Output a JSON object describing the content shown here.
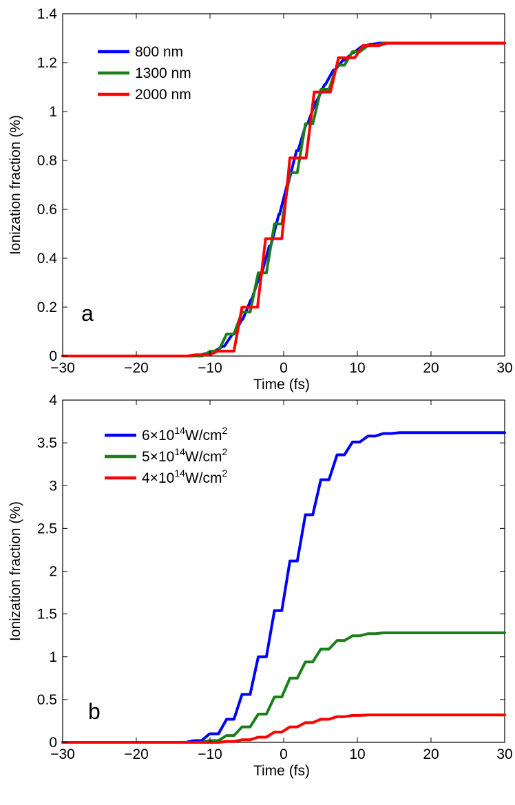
{
  "colors": {
    "blue": "#0000ff",
    "green": "#1a7f1a",
    "red": "#ff0000"
  },
  "chart_data": [
    {
      "type": "line",
      "panel_label": "a",
      "title": "",
      "xlabel": "Time (fs)",
      "ylabel": "Ionization fraction (%)",
      "xlim": [
        -30,
        30
      ],
      "ylim": [
        0,
        1.4
      ],
      "xticks": [
        "−30",
        "−20",
        "−10",
        "0",
        "10",
        "20",
        "30"
      ],
      "yticks": [
        "0",
        "0.2",
        "0.4",
        "0.6",
        "0.8",
        "1",
        "1.2",
        "1.4"
      ],
      "grid": false,
      "legend_position": "top-left",
      "series": [
        {
          "name": "800 nm",
          "color": "#0000ff",
          "final": 1.28,
          "steps": [
            [
              -11.2,
              0.01
            ],
            [
              -10,
              0.02
            ],
            [
              -8.8,
              0.04
            ],
            [
              -7.5,
              0.09
            ],
            [
              -6.2,
              0.15
            ],
            [
              -5,
              0.23
            ],
            [
              -3.8,
              0.33
            ],
            [
              -2.5,
              0.45
            ],
            [
              -1.2,
              0.58
            ],
            [
              0,
              0.71
            ],
            [
              1.2,
              0.84
            ],
            [
              2.5,
              0.95
            ],
            [
              3.8,
              1.04
            ],
            [
              5,
              1.11
            ],
            [
              6.2,
              1.17
            ],
            [
              7.5,
              1.21
            ],
            [
              8.8,
              1.24
            ],
            [
              10,
              1.265
            ],
            [
              11.2,
              1.275
            ],
            [
              12.5,
              1.28
            ]
          ]
        },
        {
          "name": "1300 nm",
          "color": "#1a7f1a",
          "final": 1.28,
          "steps": [
            [
              -10.5,
              0.02
            ],
            [
              -8.3,
              0.09
            ],
            [
              -6.2,
              0.18
            ],
            [
              -4,
              0.34
            ],
            [
              -1.8,
              0.54
            ],
            [
              0.3,
              0.75
            ],
            [
              2.4,
              0.95
            ],
            [
              4.5,
              1.09
            ],
            [
              6.7,
              1.19
            ],
            [
              8.8,
              1.245
            ],
            [
              10.9,
              1.27
            ],
            [
              13,
              1.28
            ]
          ]
        },
        {
          "name": "2000 nm",
          "color": "#ff0000",
          "final": 1.28,
          "steps": [
            [
              -12.5,
              0.005
            ],
            [
              -9.5,
              0.02
            ],
            [
              -6.2,
              0.2
            ],
            [
              -3,
              0.48
            ],
            [
              0.3,
              0.81
            ],
            [
              3.6,
              1.08
            ],
            [
              6.9,
              1.22
            ],
            [
              10.2,
              1.27
            ],
            [
              13.5,
              1.28
            ]
          ]
        }
      ]
    },
    {
      "type": "line",
      "panel_label": "b",
      "title": "",
      "xlabel": "Time (fs)",
      "ylabel": "Ionization fraction (%)",
      "xlim": [
        -30,
        30
      ],
      "ylim": [
        0,
        4
      ],
      "xticks": [
        "−30",
        "−20",
        "−10",
        "0",
        "10",
        "20",
        "30"
      ],
      "yticks": [
        "0",
        "0.5",
        "1",
        "1.5",
        "2",
        "2.5",
        "3",
        "3.5",
        "4"
      ],
      "grid": false,
      "legend_position": "top-left",
      "series": [
        {
          "name_base": "6×10",
          "name_exp": "14",
          "name_unit": "W/cm",
          "name_unit_exp": "2",
          "color": "#0000ff",
          "steps": [
            [
              -12.7,
              0.02
            ],
            [
              -10.6,
              0.1
            ],
            [
              -8.3,
              0.27
            ],
            [
              -6.2,
              0.56
            ],
            [
              -4,
              1.0
            ],
            [
              -1.8,
              1.54
            ],
            [
              0.3,
              2.12
            ],
            [
              2.4,
              2.66
            ],
            [
              4.5,
              3.07
            ],
            [
              6.7,
              3.36
            ],
            [
              8.8,
              3.51
            ],
            [
              10.9,
              3.58
            ],
            [
              13,
              3.61
            ],
            [
              15.2,
              3.62
            ]
          ]
        },
        {
          "name_base": "5×10",
          "name_exp": "14",
          "name_unit": "W/cm",
          "name_unit_exp": "2",
          "color": "#1a7f1a",
          "steps": [
            [
              -10.6,
              0.02
            ],
            [
              -8.3,
              0.08
            ],
            [
              -6.2,
              0.18
            ],
            [
              -4,
              0.33
            ],
            [
              -1.8,
              0.53
            ],
            [
              0.3,
              0.75
            ],
            [
              2.4,
              0.94
            ],
            [
              4.5,
              1.09
            ],
            [
              6.7,
              1.19
            ],
            [
              8.8,
              1.245
            ],
            [
              10.9,
              1.27
            ],
            [
              13,
              1.28
            ]
          ]
        },
        {
          "name_base": "4×10",
          "name_exp": "14",
          "name_unit": "W/cm",
          "name_unit_exp": "2",
          "color": "#ff0000",
          "steps": [
            [
              -8.3,
              0.01
            ],
            [
              -6.2,
              0.03
            ],
            [
              -4,
              0.06
            ],
            [
              -1.8,
              0.12
            ],
            [
              0.3,
              0.18
            ],
            [
              2.4,
              0.23
            ],
            [
              4.5,
              0.27
            ],
            [
              6.7,
              0.3
            ],
            [
              8.8,
              0.315
            ],
            [
              10.9,
              0.32
            ]
          ]
        }
      ]
    }
  ]
}
